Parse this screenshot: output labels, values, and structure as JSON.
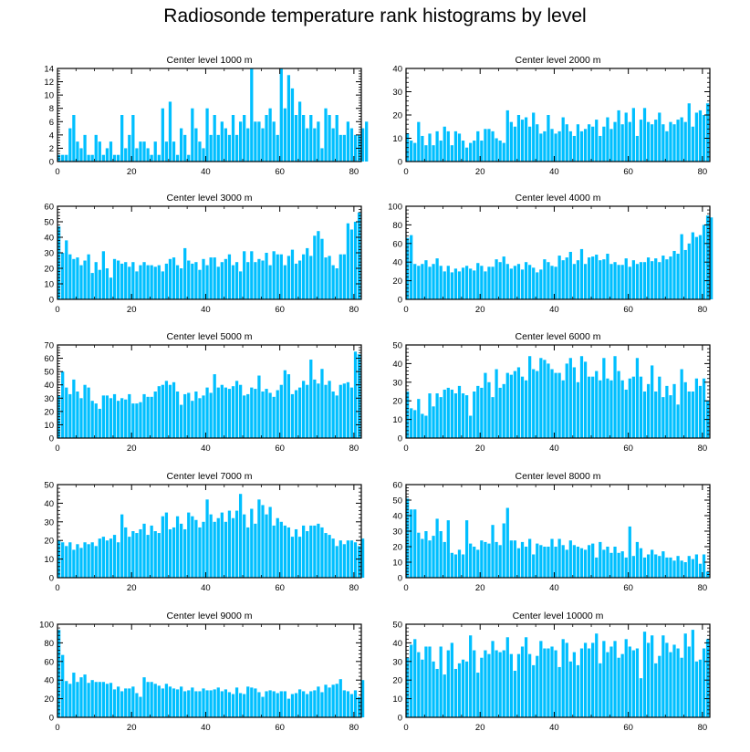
{
  "title": "Radiosonde temperature rank histograms by level",
  "chart_data": [
    {
      "type": "bar",
      "title": "Center level 1000 m",
      "ylim": [
        0,
        14
      ],
      "yticks": [
        0,
        2,
        4,
        6,
        8,
        10,
        12,
        14
      ],
      "xlim": [
        0,
        82
      ],
      "xticks": [
        0,
        20,
        40,
        60,
        80
      ],
      "color": "#00bfff",
      "values": [
        1,
        1,
        1,
        5,
        7,
        3,
        2,
        4,
        1,
        1,
        4,
        3,
        1,
        2,
        3,
        1,
        1,
        7,
        2,
        4,
        7,
        2,
        3,
        3,
        2,
        1,
        3,
        1,
        8,
        3,
        9,
        3,
        1,
        5,
        4,
        1,
        8,
        5,
        3,
        2,
        8,
        4,
        7,
        4,
        6,
        5,
        4,
        7,
        4,
        6,
        7,
        5,
        14,
        6,
        6,
        5,
        7,
        8,
        6,
        4,
        14,
        8,
        13,
        11,
        7,
        9,
        7,
        5,
        7,
        5,
        6,
        2,
        8,
        7,
        5,
        7,
        4,
        4,
        6,
        5,
        4,
        4,
        5,
        6
      ]
    },
    {
      "type": "bar",
      "title": "Center level 2000 m",
      "ylim": [
        0,
        40
      ],
      "yticks": [
        0,
        10,
        20,
        30,
        40
      ],
      "xlim": [
        0,
        82
      ],
      "xticks": [
        0,
        20,
        40,
        60,
        80
      ],
      "color": "#00bfff",
      "values": [
        12,
        9,
        8,
        17,
        11,
        7,
        12,
        7,
        13,
        9,
        15,
        13,
        7,
        13,
        12,
        9,
        6,
        8,
        9,
        13,
        9,
        14,
        14,
        13,
        10,
        9,
        8,
        22,
        17,
        15,
        20,
        18,
        19,
        15,
        21,
        16,
        12,
        13,
        20,
        14,
        12,
        13,
        19,
        16,
        13,
        11,
        16,
        13,
        14,
        16,
        15,
        18,
        11,
        15,
        19,
        14,
        17,
        22,
        16,
        21,
        17,
        23,
        11,
        18,
        23,
        17,
        16,
        18,
        21,
        16,
        13,
        17,
        16,
        18,
        19,
        17,
        25,
        15,
        21,
        22,
        20,
        25
      ]
    },
    {
      "type": "bar",
      "title": "Center level 3000 m",
      "ylim": [
        0,
        60
      ],
      "yticks": [
        0,
        10,
        20,
        30,
        40,
        50,
        60
      ],
      "xlim": [
        0,
        82
      ],
      "xticks": [
        0,
        20,
        40,
        60,
        80
      ],
      "color": "#00bfff",
      "values": [
        47,
        30,
        38,
        29,
        26,
        27,
        22,
        25,
        29,
        17,
        24,
        19,
        31,
        20,
        14,
        26,
        25,
        23,
        24,
        21,
        24,
        18,
        22,
        24,
        22,
        22,
        21,
        22,
        18,
        23,
        26,
        27,
        22,
        20,
        33,
        25,
        23,
        24,
        19,
        26,
        22,
        27,
        27,
        21,
        24,
        26,
        29,
        22,
        24,
        18,
        31,
        24,
        31,
        24,
        26,
        25,
        30,
        22,
        31,
        29,
        29,
        22,
        28,
        32,
        23,
        25,
        29,
        33,
        28,
        41,
        44,
        39,
        27,
        28,
        22,
        20,
        29,
        29,
        49,
        45,
        50,
        56
      ]
    },
    {
      "type": "bar",
      "title": "Center level 4000 m",
      "ylim": [
        0,
        100
      ],
      "yticks": [
        0,
        20,
        40,
        60,
        80,
        100
      ],
      "xlim": [
        0,
        82
      ],
      "xticks": [
        0,
        20,
        40,
        60,
        80
      ],
      "color": "#00bfff",
      "values": [
        66,
        69,
        38,
        36,
        38,
        42,
        35,
        38,
        44,
        36,
        30,
        36,
        29,
        33,
        30,
        34,
        36,
        33,
        31,
        39,
        36,
        30,
        35,
        35,
        43,
        40,
        46,
        38,
        33,
        36,
        38,
        32,
        40,
        37,
        34,
        29,
        32,
        43,
        40,
        36,
        35,
        47,
        42,
        45,
        51,
        38,
        42,
        54,
        38,
        45,
        46,
        48,
        42,
        43,
        49,
        38,
        40,
        37,
        37,
        44,
        35,
        42,
        38,
        40,
        40,
        45,
        41,
        44,
        40,
        47,
        43,
        46,
        52,
        49,
        70,
        53,
        60,
        72,
        67,
        69,
        80,
        90,
        88
      ]
    },
    {
      "type": "bar",
      "title": "Center level 5000 m",
      "ylim": [
        0,
        70
      ],
      "yticks": [
        0,
        10,
        20,
        30,
        40,
        50,
        60,
        70
      ],
      "xlim": [
        0,
        82
      ],
      "xticks": [
        0,
        20,
        40,
        60,
        80
      ],
      "color": "#00bfff",
      "values": [
        32,
        50,
        38,
        33,
        44,
        35,
        30,
        40,
        38,
        28,
        26,
        22,
        32,
        32,
        30,
        33,
        28,
        30,
        29,
        33,
        26,
        26,
        27,
        33,
        31,
        31,
        35,
        39,
        40,
        43,
        40,
        42,
        35,
        25,
        33,
        34,
        28,
        35,
        30,
        32,
        38,
        34,
        48,
        38,
        40,
        38,
        37,
        39,
        43,
        40,
        32,
        33,
        38,
        37,
        47,
        35,
        37,
        34,
        31,
        36,
        40,
        51,
        48,
        33,
        36,
        38,
        43,
        40,
        59,
        44,
        41,
        52,
        40,
        43,
        35,
        32,
        40,
        41,
        42,
        38,
        65,
        63
      ]
    },
    {
      "type": "bar",
      "title": "Center level 6000 m",
      "ylim": [
        0,
        50
      ],
      "yticks": [
        0,
        10,
        20,
        30,
        40,
        50
      ],
      "xlim": [
        0,
        82
      ],
      "xticks": [
        0,
        20,
        40,
        60,
        80
      ],
      "color": "#00bfff",
      "values": [
        25,
        16,
        15,
        21,
        13,
        12,
        24,
        17,
        24,
        22,
        26,
        27,
        26,
        24,
        28,
        24,
        23,
        12,
        25,
        28,
        27,
        35,
        30,
        22,
        37,
        27,
        29,
        35,
        34,
        36,
        38,
        33,
        31,
        44,
        37,
        36,
        43,
        42,
        40,
        37,
        35,
        35,
        31,
        40,
        43,
        38,
        30,
        44,
        41,
        33,
        33,
        36,
        31,
        43,
        32,
        31,
        44,
        36,
        31,
        26,
        32,
        33,
        43,
        33,
        25,
        29,
        39,
        25,
        33,
        22,
        28,
        23,
        29,
        18,
        37,
        30,
        25,
        25,
        32,
        28,
        32,
        20
      ]
    },
    {
      "type": "bar",
      "title": "Center level 7000 m",
      "ylim": [
        0,
        50
      ],
      "yticks": [
        0,
        10,
        20,
        30,
        40,
        50
      ],
      "xlim": [
        0,
        82
      ],
      "xticks": [
        0,
        20,
        40,
        60,
        80
      ],
      "color": "#00bfff",
      "values": [
        20,
        19,
        17,
        19,
        15,
        18,
        16,
        19,
        18,
        19,
        17,
        21,
        22,
        20,
        21,
        23,
        19,
        34,
        27,
        22,
        25,
        24,
        26,
        29,
        23,
        28,
        25,
        24,
        33,
        35,
        26,
        27,
        33,
        29,
        26,
        35,
        33,
        31,
        27,
        30,
        42,
        34,
        30,
        32,
        35,
        30,
        36,
        32,
        36,
        45,
        34,
        27,
        37,
        29,
        42,
        39,
        34,
        38,
        28,
        32,
        30,
        28,
        27,
        22,
        26,
        22,
        28,
        25,
        28,
        28,
        29,
        27,
        24,
        23,
        21,
        17,
        20,
        18,
        20,
        20,
        19,
        17,
        21
      ]
    },
    {
      "type": "bar",
      "title": "Center level 8000 m",
      "ylim": [
        0,
        60
      ],
      "yticks": [
        0,
        10,
        20,
        30,
        40,
        50,
        60
      ],
      "xlim": [
        0,
        82
      ],
      "xticks": [
        0,
        20,
        40,
        60,
        80
      ],
      "color": "#00bfff",
      "values": [
        51,
        44,
        44,
        29,
        25,
        30,
        24,
        27,
        38,
        30,
        23,
        37,
        16,
        15,
        18,
        15,
        37,
        22,
        20,
        18,
        24,
        23,
        22,
        34,
        23,
        21,
        35,
        45,
        24,
        24,
        19,
        23,
        20,
        25,
        15,
        22,
        21,
        20,
        20,
        25,
        20,
        25,
        21,
        18,
        24,
        21,
        20,
        19,
        18,
        21,
        22,
        13,
        23,
        18,
        20,
        16,
        20,
        16,
        17,
        13,
        33,
        14,
        23,
        19,
        13,
        15,
        18,
        15,
        14,
        17,
        13,
        13,
        11,
        14,
        11,
        10,
        14,
        12,
        15,
        9,
        15,
        4
      ]
    },
    {
      "type": "bar",
      "title": "Center level 9000 m",
      "ylim": [
        0,
        100
      ],
      "yticks": [
        0,
        20,
        40,
        60,
        80,
        100
      ],
      "xlim": [
        0,
        82
      ],
      "xticks": [
        0,
        20,
        40,
        60,
        80
      ],
      "color": "#00bfff",
      "values": [
        94,
        67,
        39,
        36,
        48,
        38,
        43,
        46,
        37,
        40,
        38,
        38,
        38,
        36,
        37,
        30,
        33,
        28,
        31,
        31,
        33,
        26,
        22,
        43,
        38,
        38,
        36,
        34,
        31,
        36,
        33,
        31,
        30,
        33,
        28,
        29,
        32,
        28,
        28,
        31,
        29,
        29,
        30,
        32,
        28,
        30,
        27,
        25,
        32,
        26,
        25,
        33,
        32,
        31,
        27,
        22,
        28,
        29,
        28,
        26,
        28,
        28,
        20,
        25,
        26,
        30,
        28,
        25,
        28,
        29,
        33,
        27,
        35,
        32,
        35,
        36,
        41,
        29,
        28,
        25,
        29,
        22,
        40
      ]
    },
    {
      "type": "bar",
      "title": "Center level 10000 m",
      "ylim": [
        0,
        50
      ],
      "yticks": [
        0,
        10,
        20,
        30,
        40,
        50
      ],
      "xlim": [
        0,
        82
      ],
      "xticks": [
        0,
        20,
        40,
        60,
        80
      ],
      "color": "#00bfff",
      "values": [
        32,
        39,
        42,
        35,
        31,
        38,
        38,
        30,
        26,
        38,
        23,
        36,
        40,
        26,
        29,
        31,
        30,
        44,
        36,
        24,
        32,
        36,
        34,
        41,
        36,
        35,
        36,
        43,
        34,
        25,
        34,
        38,
        43,
        34,
        28,
        33,
        41,
        37,
        37,
        38,
        36,
        27,
        42,
        40,
        30,
        35,
        28,
        37,
        40,
        37,
        40,
        45,
        29,
        41,
        35,
        38,
        41,
        32,
        34,
        42,
        38,
        36,
        37,
        21,
        46,
        40,
        44,
        29,
        33,
        44,
        40,
        35,
        39,
        37,
        32,
        45,
        38,
        47,
        30,
        31,
        37,
        42
      ]
    }
  ]
}
